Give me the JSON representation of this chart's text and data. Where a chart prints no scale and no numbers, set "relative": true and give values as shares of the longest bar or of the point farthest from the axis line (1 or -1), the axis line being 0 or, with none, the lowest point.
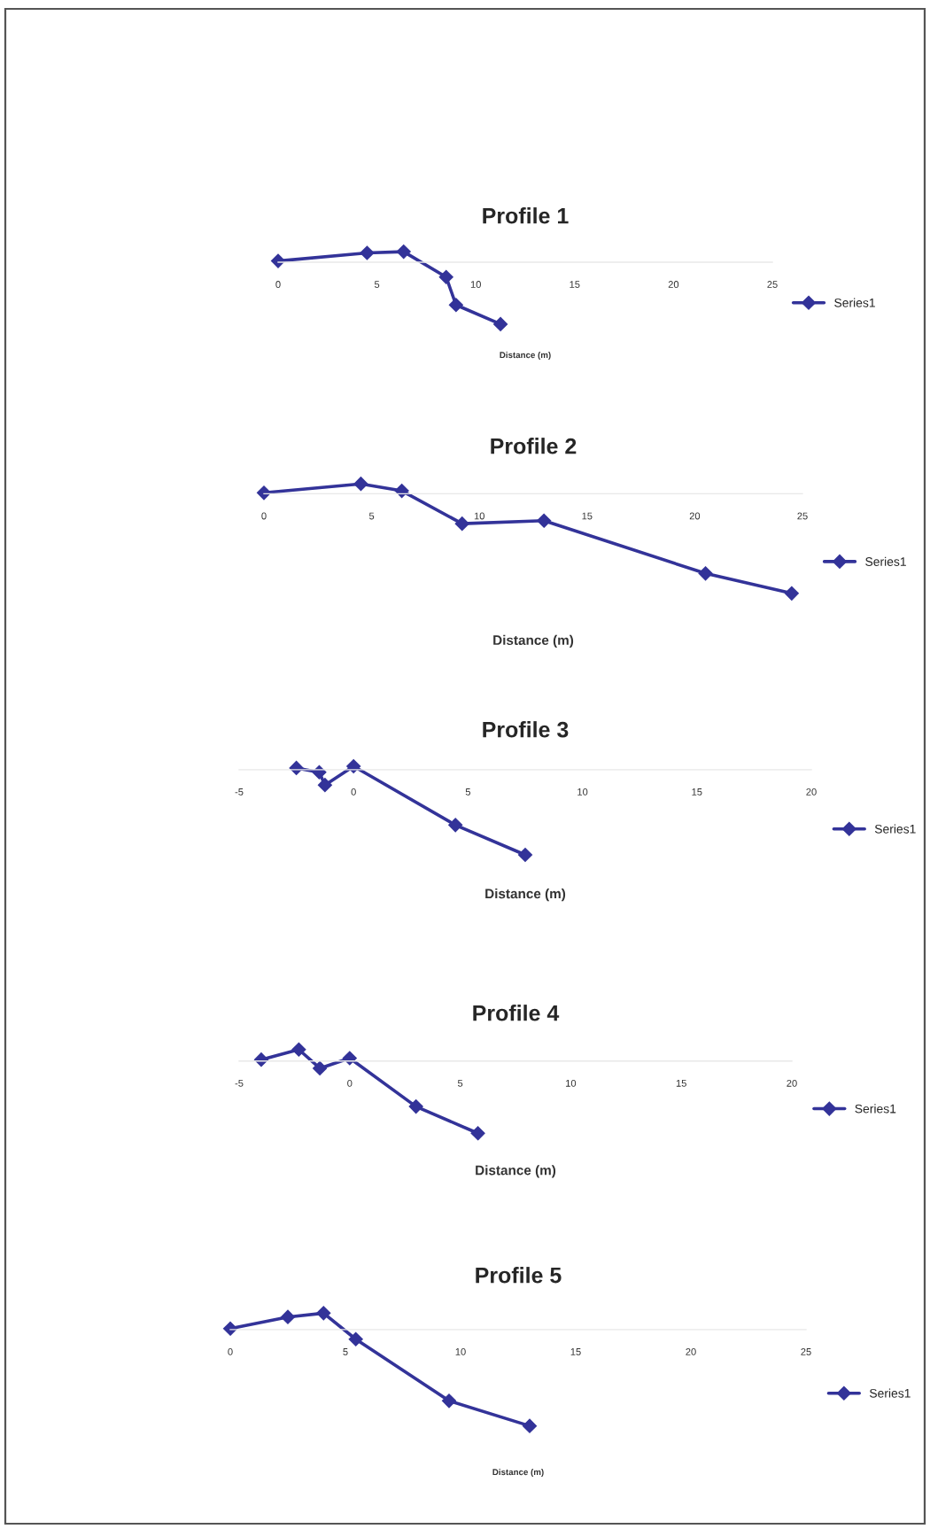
{
  "chart_data": [
    {
      "type": "line",
      "title": "Profile 1",
      "xlabel": "Distance (m)",
      "relative": true,
      "xlim": [
        0,
        25
      ],
      "xticks": [
        0,
        5,
        10,
        15,
        20,
        25
      ],
      "legend": "right",
      "marker": "diamond",
      "line_style": "solid",
      "series": [
        {
          "name": "Series1",
          "color": "#333399",
          "x": [
            0,
            4.5,
            6.35,
            8.5,
            9.0,
            11.25
          ],
          "values": [
            0.02,
            0.15,
            0.17,
            -0.24,
            -0.69,
            -1
          ]
        }
      ]
    },
    {
      "type": "line",
      "title": "Profile 2",
      "xlabel": "Distance (m)",
      "relative": true,
      "xlim": [
        0,
        25
      ],
      "xticks": [
        0,
        5,
        10,
        15,
        20,
        25
      ],
      "legend": "right",
      "marker": "diamond",
      "line_style": "solid",
      "series": [
        {
          "name": "Series1",
          "color": "#333399",
          "x": [
            0,
            4.5,
            6.4,
            9.2,
            13.0,
            20.5,
            24.5
          ],
          "values": [
            0.01,
            0.1,
            0.03,
            -0.3,
            -0.27,
            -0.8,
            -1
          ]
        }
      ]
    },
    {
      "type": "line",
      "title": "Profile 3",
      "xlabel": "Distance (m)",
      "relative": true,
      "xlim": [
        -5,
        20
      ],
      "xticks": [
        -5,
        0,
        5,
        10,
        15,
        20
      ],
      "legend": "right",
      "marker": "diamond",
      "line_style": "solid",
      "series": [
        {
          "name": "Series1",
          "color": "#333399",
          "x": [
            -2.5,
            -1.5,
            -1.25,
            0,
            4.45,
            7.5
          ],
          "values": [
            0.02,
            -0.03,
            -0.18,
            0.04,
            -0.65,
            -1
          ]
        }
      ]
    },
    {
      "type": "line",
      "title": "Profile 4",
      "xlabel": "Distance (m)",
      "relative": true,
      "xlim": [
        -5,
        20
      ],
      "xticks": [
        -5,
        0,
        5,
        10,
        15,
        20
      ],
      "legend": "right",
      "marker": "diamond",
      "line_style": "solid",
      "series": [
        {
          "name": "Series1",
          "color": "#333399",
          "x": [
            -4.0,
            -2.3,
            -1.35,
            0,
            3.0,
            5.8
          ],
          "values": [
            0.02,
            0.16,
            -0.1,
            0.04,
            -0.63,
            -1
          ]
        }
      ]
    },
    {
      "type": "line",
      "title": "Profile 5",
      "xlabel": "Distance (m)",
      "relative": true,
      "xlim": [
        0,
        25
      ],
      "xticks": [
        0,
        5,
        10,
        15,
        20,
        25
      ],
      "legend": "right",
      "marker": "diamond",
      "line_style": "solid",
      "series": [
        {
          "name": "Series1",
          "color": "#333399",
          "x": [
            0,
            2.5,
            4.05,
            5.45,
            9.5,
            13.0
          ],
          "values": [
            0.01,
            0.13,
            0.17,
            -0.1,
            -0.74,
            -1
          ]
        }
      ]
    }
  ]
}
